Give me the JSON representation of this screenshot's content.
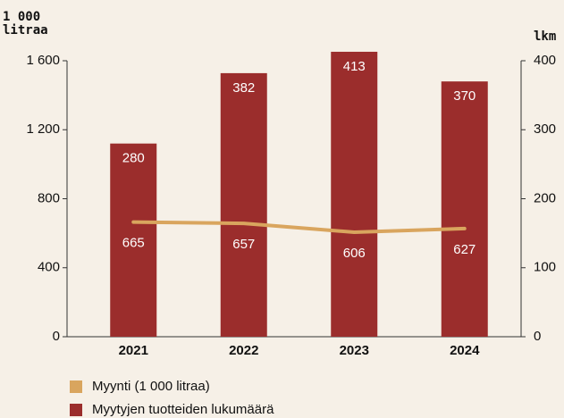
{
  "chart_data": {
    "type": "combo",
    "ylabel": "1 000 litraa",
    "y2label": "lkm",
    "categories": [
      "2021",
      "2022",
      "2023",
      "2024"
    ],
    "series": [
      {
        "name": "Myynti (1 000 litraa)",
        "type": "line",
        "axis": "y",
        "color": "#d9a55e",
        "values": [
          665,
          657,
          606,
          627
        ]
      },
      {
        "name": "Myytyjen tuotteiden lukumäärä",
        "type": "bar",
        "axis": "y2",
        "color": "#9b2d2c",
        "values": [
          280,
          382,
          413,
          370
        ]
      }
    ],
    "ylim": [
      0,
      1600
    ],
    "yticks": [
      0,
      400,
      800,
      {
        "value": 1200,
        "label": "1 200"
      },
      {
        "value": 1600,
        "label": "1 600"
      }
    ],
    "y2lim": [
      0,
      400
    ],
    "y2ticks": [
      0,
      100,
      200,
      300,
      400
    ]
  }
}
